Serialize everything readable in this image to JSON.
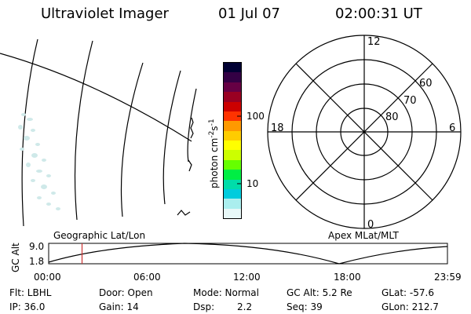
{
  "header": {
    "title": "Ultraviolet Imager",
    "date": "01 Jul 07",
    "time": "02:00:31 UT"
  },
  "colorbar": {
    "unit_label": "photon cm",
    "unit_exp1": "-2",
    "unit_mid": "s",
    "unit_exp2": "-1",
    "tick_100": "100",
    "tick_10": "10",
    "colors": [
      "#000033",
      "#330044",
      "#660044",
      "#990022",
      "#cc0000",
      "#ff3300",
      "#ff9900",
      "#ffcc00",
      "#ffff00",
      "#ccff00",
      "#66ff00",
      "#00ee44",
      "#00ddaa",
      "#00ccdd",
      "#aaeeee",
      "#e8f8f8"
    ]
  },
  "polar_plot": {
    "label_top": "12",
    "label_bottom": "0",
    "label_left": "18",
    "label_right": "6",
    "ring_labels": [
      "60",
      "70",
      "80"
    ]
  },
  "timeline": {
    "left_label": "Geographic Lat/Lon",
    "right_label": "Apex MLat/MLT",
    "y_axis_title": "GC Alt",
    "y_top": "9.0",
    "y_bottom": "1.8",
    "x_ticks": [
      "00:00",
      "06:00",
      "12:00",
      "18:00",
      "23:59"
    ],
    "marker_time": "02:00:31"
  },
  "footer": {
    "flt": "Flt: LBHL",
    "ip": "IP: 36.0",
    "door": "Door: Open",
    "gain": "Gain: 14",
    "mode": "Mode: Normal",
    "dsp_label": "Dsp:",
    "dsp_value": "2.2",
    "gcalt": "GC Alt: 5.2 Re",
    "seq": "Seq: 39",
    "glat": "GLat: -57.6",
    "glon": "GLon: 212.7"
  }
}
